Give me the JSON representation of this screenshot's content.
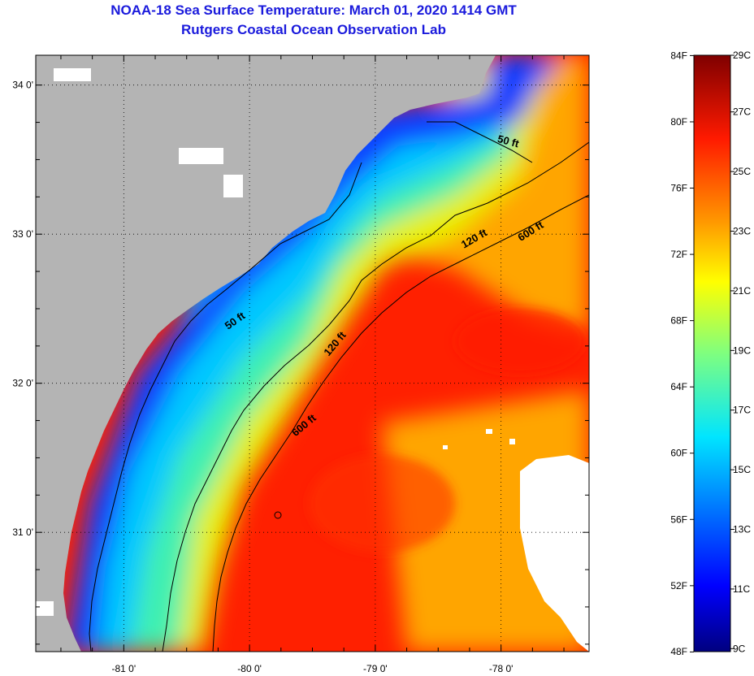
{
  "title": {
    "line1": "NOAA-18 Sea Surface Temperature:  March 01, 2020 1414 GMT",
    "line2": "Rutgers Coastal Ocean Observation Lab"
  },
  "map": {
    "lon_range": [
      -81.7,
      -77.3
    ],
    "lat_range": [
      30.2,
      34.2
    ],
    "lon_ticks": [
      {
        "value": -81,
        "label": "-81 0'"
      },
      {
        "value": -80,
        "label": "-80 0'"
      },
      {
        "value": -79,
        "label": "-79 0'"
      },
      {
        "value": -78,
        "label": "-78 0'"
      }
    ],
    "lat_ticks": [
      {
        "value": 34,
        "label": "34 0'"
      },
      {
        "value": 33,
        "label": "33 0'"
      },
      {
        "value": 32,
        "label": "32 0'"
      },
      {
        "value": 31,
        "label": "31 0'"
      }
    ],
    "land_color": "#b4b4b4",
    "cloud_color": "#ffffff",
    "contour_labels": [
      {
        "text": "50 ft",
        "lon": -77.95,
        "lat": 33.6,
        "angle": 15
      },
      {
        "text": "120 ft",
        "lon": -78.2,
        "lat": 32.95,
        "angle": -30
      },
      {
        "text": "600 ft",
        "lon": -77.75,
        "lat": 33.0,
        "angle": -32
      },
      {
        "text": "50 ft",
        "lon": -80.1,
        "lat": 32.4,
        "angle": -35
      },
      {
        "text": "120 ft",
        "lon": -79.3,
        "lat": 32.25,
        "angle": -50
      },
      {
        "text": "600 ft",
        "lon": -79.55,
        "lat": 31.7,
        "angle": -40
      }
    ]
  },
  "colorbar": {
    "fahrenheit_labels": [
      "84F",
      "80F",
      "76F",
      "72F",
      "68F",
      "64F",
      "60F",
      "56F",
      "52F",
      "48F"
    ],
    "fahrenheit_values": [
      84,
      80,
      76,
      72,
      68,
      64,
      60,
      56,
      52,
      48
    ],
    "celsius_labels": [
      "29C",
      "27C",
      "25C",
      "23C",
      "21C",
      "19C",
      "17C",
      "15C",
      "13C",
      "11C",
      "9C"
    ],
    "celsius_values": [
      29,
      27,
      25,
      23,
      21,
      19,
      17,
      15,
      13,
      11,
      9
    ],
    "range_c": [
      8.9,
      28.9
    ]
  }
}
